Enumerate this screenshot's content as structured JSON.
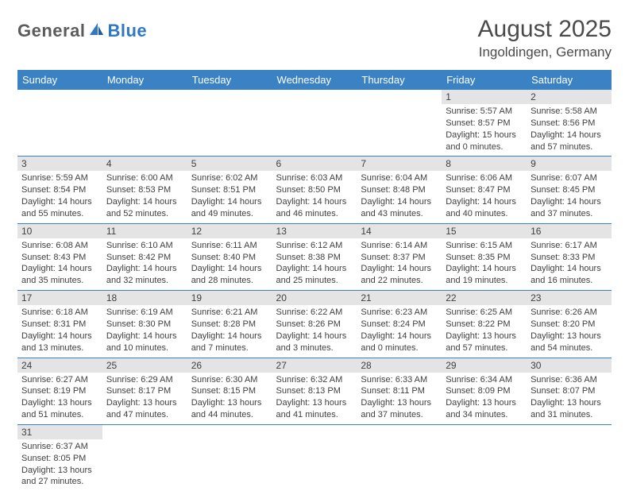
{
  "logo": {
    "text1": "General",
    "text2": "Blue"
  },
  "title": "August 2025",
  "location": "Ingoldingen, Germany",
  "colors": {
    "header_bg": "#3b82c4",
    "header_text": "#ffffff",
    "daynum_bg": "#e4e4e4",
    "cell_border": "#3b82c4",
    "body_text": "#404040",
    "logo_gray": "#5b5b5b",
    "logo_blue": "#2f78c2"
  },
  "typography": {
    "month_title_pt": 30,
    "location_pt": 17,
    "header_cell_pt": 13,
    "daynum_pt": 12,
    "body_pt": 11
  },
  "weekdays": [
    "Sunday",
    "Monday",
    "Tuesday",
    "Wednesday",
    "Thursday",
    "Friday",
    "Saturday"
  ],
  "weeks": [
    [
      null,
      null,
      null,
      null,
      null,
      {
        "n": "1",
        "sr": "Sunrise: 5:57 AM",
        "ss": "Sunset: 8:57 PM",
        "dl": "Daylight: 15 hours and 0 minutes."
      },
      {
        "n": "2",
        "sr": "Sunrise: 5:58 AM",
        "ss": "Sunset: 8:56 PM",
        "dl": "Daylight: 14 hours and 57 minutes."
      }
    ],
    [
      {
        "n": "3",
        "sr": "Sunrise: 5:59 AM",
        "ss": "Sunset: 8:54 PM",
        "dl": "Daylight: 14 hours and 55 minutes."
      },
      {
        "n": "4",
        "sr": "Sunrise: 6:00 AM",
        "ss": "Sunset: 8:53 PM",
        "dl": "Daylight: 14 hours and 52 minutes."
      },
      {
        "n": "5",
        "sr": "Sunrise: 6:02 AM",
        "ss": "Sunset: 8:51 PM",
        "dl": "Daylight: 14 hours and 49 minutes."
      },
      {
        "n": "6",
        "sr": "Sunrise: 6:03 AM",
        "ss": "Sunset: 8:50 PM",
        "dl": "Daylight: 14 hours and 46 minutes."
      },
      {
        "n": "7",
        "sr": "Sunrise: 6:04 AM",
        "ss": "Sunset: 8:48 PM",
        "dl": "Daylight: 14 hours and 43 minutes."
      },
      {
        "n": "8",
        "sr": "Sunrise: 6:06 AM",
        "ss": "Sunset: 8:47 PM",
        "dl": "Daylight: 14 hours and 40 minutes."
      },
      {
        "n": "9",
        "sr": "Sunrise: 6:07 AM",
        "ss": "Sunset: 8:45 PM",
        "dl": "Daylight: 14 hours and 37 minutes."
      }
    ],
    [
      {
        "n": "10",
        "sr": "Sunrise: 6:08 AM",
        "ss": "Sunset: 8:43 PM",
        "dl": "Daylight: 14 hours and 35 minutes."
      },
      {
        "n": "11",
        "sr": "Sunrise: 6:10 AM",
        "ss": "Sunset: 8:42 PM",
        "dl": "Daylight: 14 hours and 32 minutes."
      },
      {
        "n": "12",
        "sr": "Sunrise: 6:11 AM",
        "ss": "Sunset: 8:40 PM",
        "dl": "Daylight: 14 hours and 28 minutes."
      },
      {
        "n": "13",
        "sr": "Sunrise: 6:12 AM",
        "ss": "Sunset: 8:38 PM",
        "dl": "Daylight: 14 hours and 25 minutes."
      },
      {
        "n": "14",
        "sr": "Sunrise: 6:14 AM",
        "ss": "Sunset: 8:37 PM",
        "dl": "Daylight: 14 hours and 22 minutes."
      },
      {
        "n": "15",
        "sr": "Sunrise: 6:15 AM",
        "ss": "Sunset: 8:35 PM",
        "dl": "Daylight: 14 hours and 19 minutes."
      },
      {
        "n": "16",
        "sr": "Sunrise: 6:17 AM",
        "ss": "Sunset: 8:33 PM",
        "dl": "Daylight: 14 hours and 16 minutes."
      }
    ],
    [
      {
        "n": "17",
        "sr": "Sunrise: 6:18 AM",
        "ss": "Sunset: 8:31 PM",
        "dl": "Daylight: 14 hours and 13 minutes."
      },
      {
        "n": "18",
        "sr": "Sunrise: 6:19 AM",
        "ss": "Sunset: 8:30 PM",
        "dl": "Daylight: 14 hours and 10 minutes."
      },
      {
        "n": "19",
        "sr": "Sunrise: 6:21 AM",
        "ss": "Sunset: 8:28 PM",
        "dl": "Daylight: 14 hours and 7 minutes."
      },
      {
        "n": "20",
        "sr": "Sunrise: 6:22 AM",
        "ss": "Sunset: 8:26 PM",
        "dl": "Daylight: 14 hours and 3 minutes."
      },
      {
        "n": "21",
        "sr": "Sunrise: 6:23 AM",
        "ss": "Sunset: 8:24 PM",
        "dl": "Daylight: 14 hours and 0 minutes."
      },
      {
        "n": "22",
        "sr": "Sunrise: 6:25 AM",
        "ss": "Sunset: 8:22 PM",
        "dl": "Daylight: 13 hours and 57 minutes."
      },
      {
        "n": "23",
        "sr": "Sunrise: 6:26 AM",
        "ss": "Sunset: 8:20 PM",
        "dl": "Daylight: 13 hours and 54 minutes."
      }
    ],
    [
      {
        "n": "24",
        "sr": "Sunrise: 6:27 AM",
        "ss": "Sunset: 8:19 PM",
        "dl": "Daylight: 13 hours and 51 minutes."
      },
      {
        "n": "25",
        "sr": "Sunrise: 6:29 AM",
        "ss": "Sunset: 8:17 PM",
        "dl": "Daylight: 13 hours and 47 minutes."
      },
      {
        "n": "26",
        "sr": "Sunrise: 6:30 AM",
        "ss": "Sunset: 8:15 PM",
        "dl": "Daylight: 13 hours and 44 minutes."
      },
      {
        "n": "27",
        "sr": "Sunrise: 6:32 AM",
        "ss": "Sunset: 8:13 PM",
        "dl": "Daylight: 13 hours and 41 minutes."
      },
      {
        "n": "28",
        "sr": "Sunrise: 6:33 AM",
        "ss": "Sunset: 8:11 PM",
        "dl": "Daylight: 13 hours and 37 minutes."
      },
      {
        "n": "29",
        "sr": "Sunrise: 6:34 AM",
        "ss": "Sunset: 8:09 PM",
        "dl": "Daylight: 13 hours and 34 minutes."
      },
      {
        "n": "30",
        "sr": "Sunrise: 6:36 AM",
        "ss": "Sunset: 8:07 PM",
        "dl": "Daylight: 13 hours and 31 minutes."
      }
    ],
    [
      {
        "n": "31",
        "sr": "Sunrise: 6:37 AM",
        "ss": "Sunset: 8:05 PM",
        "dl": "Daylight: 13 hours and 27 minutes."
      },
      null,
      null,
      null,
      null,
      null,
      null
    ]
  ]
}
